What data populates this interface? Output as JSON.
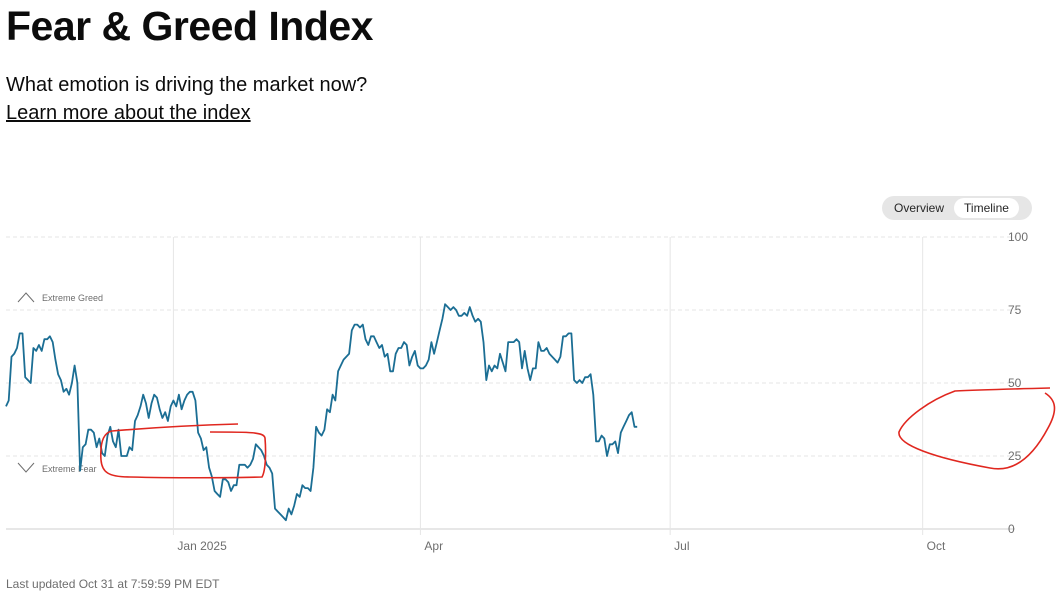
{
  "header": {
    "title": "Fear & Greed Index",
    "subtitle": "What emotion is driving the market now?",
    "learn_more": "Learn more about the index"
  },
  "toggle": {
    "options": [
      "Overview",
      "Timeline"
    ],
    "active": "Timeline"
  },
  "zones": {
    "extreme_greed": "Extreme Greed",
    "extreme_fear": "Extreme Fear"
  },
  "footer": {
    "last_updated": "Last updated Oct 31 at 7:59:59 PM EDT"
  },
  "colors": {
    "line": "#1b6e94",
    "annotation": "#e0271f",
    "grid": "#e6e6e6"
  },
  "chart_data": {
    "type": "line",
    "ylim": [
      0,
      100
    ],
    "y_ticks": [
      0,
      25,
      50,
      75,
      100
    ],
    "x_ticks": [
      {
        "label": "Jan 2025",
        "date": "2025-01-01"
      },
      {
        "label": "Apr",
        "date": "2025-04-01"
      },
      {
        "label": "Jul",
        "date": "2025-07-01"
      },
      {
        "label": "Oct",
        "date": "2025-10-01"
      }
    ],
    "xlim": [
      "2024-11-01",
      "2025-10-31"
    ],
    "series": [
      {
        "values": [
          [
            "2024-11-01",
            42
          ],
          [
            "2024-11-02",
            44
          ],
          [
            "2024-11-03",
            59
          ],
          [
            "2024-11-04",
            60
          ],
          [
            "2024-11-05",
            62
          ],
          [
            "2024-11-06",
            67
          ],
          [
            "2024-11-07",
            67
          ],
          [
            "2024-11-08",
            52
          ],
          [
            "2024-11-09",
            51
          ],
          [
            "2024-11-10",
            50
          ],
          [
            "2024-11-11",
            62
          ],
          [
            "2024-11-12",
            61
          ],
          [
            "2024-11-13",
            63
          ],
          [
            "2024-11-14",
            61
          ],
          [
            "2024-11-15",
            65
          ],
          [
            "2024-11-16",
            65
          ],
          [
            "2024-11-17",
            66
          ],
          [
            "2024-11-18",
            64
          ],
          [
            "2024-11-19",
            58
          ],
          [
            "2024-11-20",
            53
          ],
          [
            "2024-11-21",
            51
          ],
          [
            "2024-11-22",
            47
          ],
          [
            "2024-11-23",
            48
          ],
          [
            "2024-11-24",
            46
          ],
          [
            "2024-11-25",
            50
          ],
          [
            "2024-11-26",
            56
          ],
          [
            "2024-11-27",
            50
          ],
          [
            "2024-11-28",
            20
          ],
          [
            "2024-11-29",
            28
          ],
          [
            "2024-11-30",
            29
          ],
          [
            "2024-12-01",
            34
          ],
          [
            "2024-12-02",
            34
          ],
          [
            "2024-12-03",
            33
          ],
          [
            "2024-12-04",
            28
          ],
          [
            "2024-12-05",
            31
          ],
          [
            "2024-12-06",
            26
          ],
          [
            "2024-12-07",
            25
          ],
          [
            "2024-12-08",
            32
          ],
          [
            "2024-12-09",
            35
          ],
          [
            "2024-12-10",
            30
          ],
          [
            "2024-12-11",
            28
          ],
          [
            "2024-12-12",
            34
          ],
          [
            "2024-12-13",
            25
          ],
          [
            "2024-12-14",
            25
          ],
          [
            "2024-12-15",
            25
          ],
          [
            "2024-12-16",
            28
          ],
          [
            "2024-12-17",
            27
          ],
          [
            "2024-12-18",
            37
          ],
          [
            "2024-12-19",
            39
          ],
          [
            "2024-12-20",
            42
          ],
          [
            "2024-12-21",
            46
          ],
          [
            "2024-12-22",
            43
          ],
          [
            "2024-12-23",
            38
          ],
          [
            "2024-12-24",
            43
          ],
          [
            "2024-12-25",
            46
          ],
          [
            "2024-12-26",
            45
          ],
          [
            "2024-12-27",
            41
          ],
          [
            "2024-12-28",
            38
          ],
          [
            "2024-12-29",
            40
          ],
          [
            "2024-12-30",
            37
          ],
          [
            "2024-12-31",
            42
          ],
          [
            "2025-01-01",
            44
          ],
          [
            "2025-01-02",
            42
          ],
          [
            "2025-01-03",
            46
          ],
          [
            "2025-01-04",
            41
          ],
          [
            "2025-01-05",
            44
          ],
          [
            "2025-01-06",
            46
          ],
          [
            "2025-01-07",
            47
          ],
          [
            "2025-01-08",
            47
          ],
          [
            "2025-01-09",
            44
          ],
          [
            "2025-01-10",
            33
          ],
          [
            "2025-01-11",
            31
          ],
          [
            "2025-01-12",
            27
          ],
          [
            "2025-01-13",
            28
          ],
          [
            "2025-01-14",
            21
          ],
          [
            "2025-01-15",
            18
          ],
          [
            "2025-01-16",
            13
          ],
          [
            "2025-01-17",
            12
          ],
          [
            "2025-01-18",
            11
          ],
          [
            "2025-01-19",
            17
          ],
          [
            "2025-01-20",
            17
          ],
          [
            "2025-01-21",
            16
          ],
          [
            "2025-01-22",
            13
          ],
          [
            "2025-01-23",
            15
          ],
          [
            "2025-01-24",
            15
          ],
          [
            "2025-01-25",
            22
          ],
          [
            "2025-01-26",
            22
          ],
          [
            "2025-01-27",
            22
          ],
          [
            "2025-01-28",
            21
          ],
          [
            "2025-01-29",
            22
          ],
          [
            "2025-01-30",
            24
          ],
          [
            "2025-01-31",
            29
          ],
          [
            "2025-02-01",
            28
          ],
          [
            "2025-02-02",
            27
          ],
          [
            "2025-02-03",
            25
          ],
          [
            "2025-02-04",
            22
          ],
          [
            "2025-02-05",
            21
          ],
          [
            "2025-02-06",
            19
          ],
          [
            "2025-02-07",
            7
          ],
          [
            "2025-02-08",
            6
          ],
          [
            "2025-02-09",
            5
          ],
          [
            "2025-02-10",
            4
          ],
          [
            "2025-02-11",
            3
          ],
          [
            "2025-02-12",
            7
          ],
          [
            "2025-02-13",
            5
          ],
          [
            "2025-02-14",
            8
          ],
          [
            "2025-02-15",
            12
          ],
          [
            "2025-02-16",
            11
          ],
          [
            "2025-02-17",
            15
          ],
          [
            "2025-02-18",
            14
          ],
          [
            "2025-02-19",
            14
          ],
          [
            "2025-02-20",
            13
          ],
          [
            "2025-02-21",
            21
          ],
          [
            "2025-02-22",
            35
          ],
          [
            "2025-02-23",
            33
          ],
          [
            "2025-02-24",
            32
          ],
          [
            "2025-02-25",
            34
          ],
          [
            "2025-02-26",
            41
          ],
          [
            "2025-02-27",
            40
          ],
          [
            "2025-02-28",
            46
          ],
          [
            "2025-03-01",
            44
          ],
          [
            "2025-03-02",
            54
          ],
          [
            "2025-03-03",
            56
          ],
          [
            "2025-03-04",
            58
          ],
          [
            "2025-03-05",
            59
          ],
          [
            "2025-03-06",
            60
          ],
          [
            "2025-03-07",
            68
          ],
          [
            "2025-03-08",
            70
          ],
          [
            "2025-03-09",
            70
          ],
          [
            "2025-03-10",
            69
          ],
          [
            "2025-03-11",
            70
          ],
          [
            "2025-03-12",
            65
          ],
          [
            "2025-03-13",
            63
          ],
          [
            "2025-03-14",
            66
          ],
          [
            "2025-03-15",
            66
          ],
          [
            "2025-03-16",
            64
          ],
          [
            "2025-03-17",
            62
          ],
          [
            "2025-03-18",
            63
          ],
          [
            "2025-03-19",
            59
          ],
          [
            "2025-03-20",
            60
          ],
          [
            "2025-03-21",
            54
          ],
          [
            "2025-03-22",
            54
          ],
          [
            "2025-03-23",
            60
          ],
          [
            "2025-03-24",
            62
          ],
          [
            "2025-03-25",
            62
          ],
          [
            "2025-03-26",
            64
          ],
          [
            "2025-03-27",
            63
          ],
          [
            "2025-03-28",
            56
          ],
          [
            "2025-03-29",
            59
          ],
          [
            "2025-03-30",
            61
          ],
          [
            "2025-03-31",
            56
          ],
          [
            "2025-04-01",
            55
          ],
          [
            "2025-04-02",
            55
          ],
          [
            "2025-04-03",
            56
          ],
          [
            "2025-04-04",
            58
          ],
          [
            "2025-04-05",
            64
          ],
          [
            "2025-04-06",
            60
          ],
          [
            "2025-04-07",
            64
          ],
          [
            "2025-04-08",
            68
          ],
          [
            "2025-04-09",
            72
          ],
          [
            "2025-04-10",
            77
          ],
          [
            "2025-04-11",
            76
          ],
          [
            "2025-04-12",
            75
          ],
          [
            "2025-04-13",
            76
          ],
          [
            "2025-04-14",
            75
          ],
          [
            "2025-04-15",
            73
          ],
          [
            "2025-04-16",
            73
          ],
          [
            "2025-04-17",
            74
          ],
          [
            "2025-04-18",
            73
          ],
          [
            "2025-04-19",
            76
          ],
          [
            "2025-04-20",
            73
          ],
          [
            "2025-04-21",
            71
          ],
          [
            "2025-04-22",
            72
          ],
          [
            "2025-04-23",
            71
          ],
          [
            "2025-04-24",
            64
          ],
          [
            "2025-04-25",
            51
          ],
          [
            "2025-04-26",
            56
          ],
          [
            "2025-04-27",
            54
          ],
          [
            "2025-04-28",
            56
          ],
          [
            "2025-04-29",
            55
          ],
          [
            "2025-04-30",
            60
          ],
          [
            "2025-05-01",
            57
          ],
          [
            "2025-05-02",
            54
          ],
          [
            "2025-05-03",
            64
          ],
          [
            "2025-05-04",
            64
          ],
          [
            "2025-05-05",
            64
          ],
          [
            "2025-05-06",
            65
          ],
          [
            "2025-05-07",
            64
          ],
          [
            "2025-05-08",
            55
          ],
          [
            "2025-05-09",
            61
          ],
          [
            "2025-05-10",
            55
          ],
          [
            "2025-05-11",
            51
          ],
          [
            "2025-05-12",
            55
          ],
          [
            "2025-05-13",
            55
          ],
          [
            "2025-05-14",
            64
          ],
          [
            "2025-05-15",
            61
          ],
          [
            "2025-05-16",
            61
          ],
          [
            "2025-05-17",
            62
          ],
          [
            "2025-05-18",
            60
          ],
          [
            "2025-05-19",
            59
          ],
          [
            "2025-05-20",
            58
          ],
          [
            "2025-05-21",
            57
          ],
          [
            "2025-05-22",
            59
          ],
          [
            "2025-05-23",
            66
          ],
          [
            "2025-05-24",
            66
          ],
          [
            "2025-05-25",
            67
          ],
          [
            "2025-05-26",
            67
          ],
          [
            "2025-05-27",
            51
          ],
          [
            "2025-05-28",
            50
          ],
          [
            "2025-05-29",
            51
          ],
          [
            "2025-05-30",
            50
          ],
          [
            "2025-05-31",
            52
          ],
          [
            "2025-06-01",
            52
          ],
          [
            "2025-06-02",
            53
          ],
          [
            "2025-06-03",
            46
          ],
          [
            "2025-06-04",
            30
          ],
          [
            "2025-06-05",
            30
          ],
          [
            "2025-06-06",
            32
          ],
          [
            "2025-06-07",
            31
          ],
          [
            "2025-06-08",
            25
          ],
          [
            "2025-06-09",
            29
          ],
          [
            "2025-06-10",
            29
          ],
          [
            "2025-06-11",
            30
          ],
          [
            "2025-06-12",
            26
          ],
          [
            "2025-06-13",
            33
          ],
          [
            "2025-06-14",
            35
          ],
          [
            "2025-06-15",
            37
          ],
          [
            "2025-06-16",
            39
          ],
          [
            "2025-06-17",
            40
          ],
          [
            "2025-06-18",
            35
          ],
          [
            "2025-06-19",
            35
          ]
        ]
      }
    ]
  }
}
